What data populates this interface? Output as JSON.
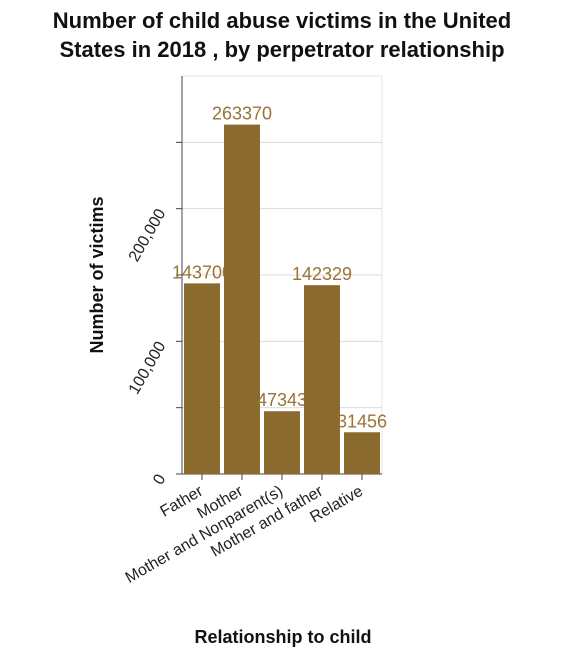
{
  "chart_data": {
    "type": "bar",
    "title_line1": "Number of child abuse victims in the United",
    "title_line2": "States in 2018 , by perpetrator relationship",
    "xlabel": "Relationship to child",
    "ylabel": "Number of victims",
    "categories": [
      "Father",
      "Mother",
      "Mother and Nonparent(s)",
      "Mother and father",
      "Relative"
    ],
    "values": [
      143700,
      263370,
      47343,
      142329,
      31456
    ],
    "data_labels": [
      "143700",
      "263370",
      "47343",
      "142329",
      "31456"
    ],
    "ylim": [
      0,
      300000
    ],
    "yticks": [
      0,
      50000,
      100000,
      150000,
      200000,
      250000
    ],
    "ytick_labels": [
      "0",
      "",
      "100,000",
      "",
      "200,000",
      ""
    ],
    "grid": true,
    "bar_color": "#8b6a2e",
    "label_color": "#9a7436"
  }
}
